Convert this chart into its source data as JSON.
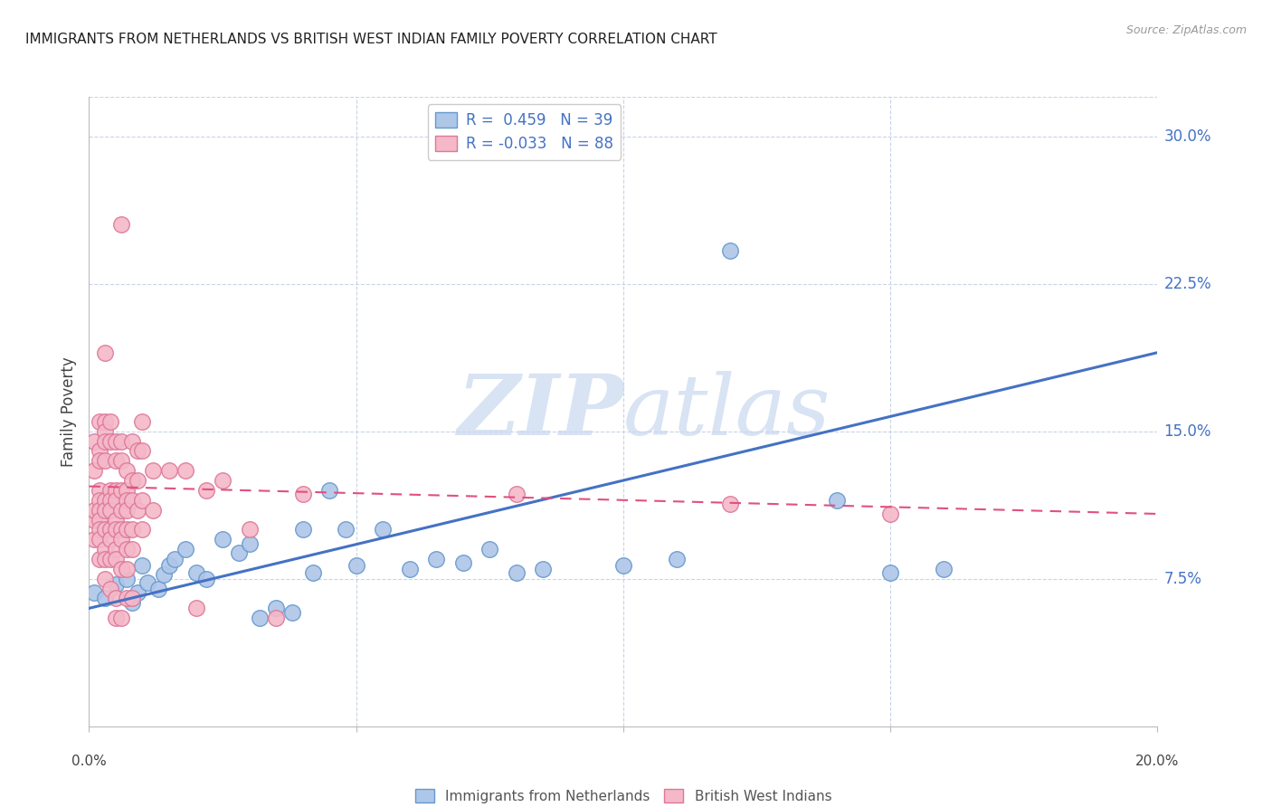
{
  "title": "IMMIGRANTS FROM NETHERLANDS VS BRITISH WEST INDIAN FAMILY POVERTY CORRELATION CHART",
  "source": "Source: ZipAtlas.com",
  "ylabel": "Family Poverty",
  "ytick_labels": [
    "7.5%",
    "15.0%",
    "22.5%",
    "30.0%"
  ],
  "ytick_values": [
    0.075,
    0.15,
    0.225,
    0.3
  ],
  "xlim": [
    0.0,
    0.2
  ],
  "ylim": [
    0.0,
    0.32
  ],
  "watermark_zip": "ZIP",
  "watermark_atlas": "atlas",
  "legend_entry_1": "R =  0.459   N = 39",
  "legend_entry_2": "R = -0.033   N = 88",
  "blue_color": "#aec6e8",
  "blue_edge": "#6699cc",
  "pink_color": "#f4b8c8",
  "pink_edge": "#dd7799",
  "blue_line_color": "#4472c4",
  "pink_line_color": "#e05080",
  "grid_color": "#c8d4e8",
  "background_color": "#ffffff",
  "blue_line_x0": 0.0,
  "blue_line_y0": 0.06,
  "blue_line_x1": 0.2,
  "blue_line_y1": 0.19,
  "pink_line_x0": 0.0,
  "pink_line_y0": 0.122,
  "pink_line_x1": 0.2,
  "pink_line_y1": 0.108,
  "blue_points": [
    [
      0.001,
      0.068
    ],
    [
      0.003,
      0.065
    ],
    [
      0.005,
      0.072
    ],
    [
      0.007,
      0.075
    ],
    [
      0.008,
      0.063
    ],
    [
      0.009,
      0.068
    ],
    [
      0.01,
      0.082
    ],
    [
      0.011,
      0.073
    ],
    [
      0.013,
      0.07
    ],
    [
      0.014,
      0.077
    ],
    [
      0.015,
      0.082
    ],
    [
      0.016,
      0.085
    ],
    [
      0.018,
      0.09
    ],
    [
      0.02,
      0.078
    ],
    [
      0.022,
      0.075
    ],
    [
      0.025,
      0.095
    ],
    [
      0.028,
      0.088
    ],
    [
      0.03,
      0.093
    ],
    [
      0.032,
      0.055
    ],
    [
      0.035,
      0.06
    ],
    [
      0.038,
      0.058
    ],
    [
      0.04,
      0.1
    ],
    [
      0.042,
      0.078
    ],
    [
      0.045,
      0.12
    ],
    [
      0.048,
      0.1
    ],
    [
      0.05,
      0.082
    ],
    [
      0.055,
      0.1
    ],
    [
      0.06,
      0.08
    ],
    [
      0.065,
      0.085
    ],
    [
      0.07,
      0.083
    ],
    [
      0.075,
      0.09
    ],
    [
      0.08,
      0.078
    ],
    [
      0.085,
      0.08
    ],
    [
      0.1,
      0.082
    ],
    [
      0.11,
      0.085
    ],
    [
      0.12,
      0.242
    ],
    [
      0.14,
      0.115
    ],
    [
      0.15,
      0.078
    ],
    [
      0.16,
      0.08
    ]
  ],
  "pink_points": [
    [
      0.001,
      0.13
    ],
    [
      0.001,
      0.145
    ],
    [
      0.001,
      0.105
    ],
    [
      0.001,
      0.11
    ],
    [
      0.001,
      0.095
    ],
    [
      0.002,
      0.155
    ],
    [
      0.002,
      0.14
    ],
    [
      0.002,
      0.135
    ],
    [
      0.002,
      0.12
    ],
    [
      0.002,
      0.115
    ],
    [
      0.002,
      0.11
    ],
    [
      0.002,
      0.105
    ],
    [
      0.002,
      0.1
    ],
    [
      0.002,
      0.095
    ],
    [
      0.002,
      0.085
    ],
    [
      0.003,
      0.19
    ],
    [
      0.003,
      0.155
    ],
    [
      0.003,
      0.15
    ],
    [
      0.003,
      0.145
    ],
    [
      0.003,
      0.135
    ],
    [
      0.003,
      0.115
    ],
    [
      0.003,
      0.11
    ],
    [
      0.003,
      0.1
    ],
    [
      0.003,
      0.09
    ],
    [
      0.003,
      0.085
    ],
    [
      0.003,
      0.075
    ],
    [
      0.004,
      0.155
    ],
    [
      0.004,
      0.145
    ],
    [
      0.004,
      0.12
    ],
    [
      0.004,
      0.115
    ],
    [
      0.004,
      0.11
    ],
    [
      0.004,
      0.1
    ],
    [
      0.004,
      0.095
    ],
    [
      0.004,
      0.085
    ],
    [
      0.004,
      0.07
    ],
    [
      0.005,
      0.145
    ],
    [
      0.005,
      0.135
    ],
    [
      0.005,
      0.12
    ],
    [
      0.005,
      0.115
    ],
    [
      0.005,
      0.105
    ],
    [
      0.005,
      0.1
    ],
    [
      0.005,
      0.09
    ],
    [
      0.005,
      0.085
    ],
    [
      0.005,
      0.065
    ],
    [
      0.005,
      0.055
    ],
    [
      0.006,
      0.255
    ],
    [
      0.006,
      0.145
    ],
    [
      0.006,
      0.135
    ],
    [
      0.006,
      0.12
    ],
    [
      0.006,
      0.11
    ],
    [
      0.006,
      0.1
    ],
    [
      0.006,
      0.095
    ],
    [
      0.006,
      0.08
    ],
    [
      0.006,
      0.055
    ],
    [
      0.007,
      0.13
    ],
    [
      0.007,
      0.12
    ],
    [
      0.007,
      0.115
    ],
    [
      0.007,
      0.11
    ],
    [
      0.007,
      0.1
    ],
    [
      0.007,
      0.09
    ],
    [
      0.007,
      0.08
    ],
    [
      0.007,
      0.065
    ],
    [
      0.008,
      0.145
    ],
    [
      0.008,
      0.125
    ],
    [
      0.008,
      0.115
    ],
    [
      0.008,
      0.1
    ],
    [
      0.008,
      0.09
    ],
    [
      0.008,
      0.065
    ],
    [
      0.009,
      0.14
    ],
    [
      0.009,
      0.125
    ],
    [
      0.009,
      0.11
    ],
    [
      0.01,
      0.155
    ],
    [
      0.01,
      0.14
    ],
    [
      0.01,
      0.115
    ],
    [
      0.01,
      0.1
    ],
    [
      0.012,
      0.13
    ],
    [
      0.012,
      0.11
    ],
    [
      0.015,
      0.13
    ],
    [
      0.018,
      0.13
    ],
    [
      0.02,
      0.06
    ],
    [
      0.022,
      0.12
    ],
    [
      0.025,
      0.125
    ],
    [
      0.03,
      0.1
    ],
    [
      0.035,
      0.055
    ],
    [
      0.04,
      0.118
    ],
    [
      0.08,
      0.118
    ],
    [
      0.12,
      0.113
    ],
    [
      0.15,
      0.108
    ]
  ]
}
